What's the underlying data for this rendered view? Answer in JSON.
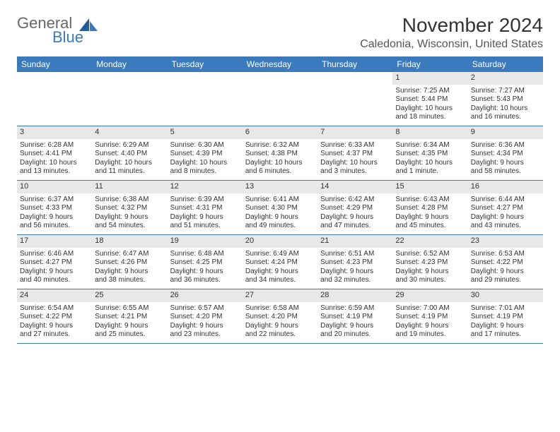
{
  "brand": {
    "part1": "General",
    "part2": "Blue"
  },
  "title": "November 2024",
  "location": "Caledonia, Wisconsin, United States",
  "colors": {
    "header_bg": "#3a7abd",
    "header_text": "#ffffff",
    "daynum_bg": "#e8e8e8",
    "body_text": "#333333",
    "rule": "#3a7abd"
  },
  "weekdays": [
    "Sunday",
    "Monday",
    "Tuesday",
    "Wednesday",
    "Thursday",
    "Friday",
    "Saturday"
  ],
  "weeks": [
    [
      {
        "n": "",
        "empty": true
      },
      {
        "n": "",
        "empty": true
      },
      {
        "n": "",
        "empty": true
      },
      {
        "n": "",
        "empty": true
      },
      {
        "n": "",
        "empty": true
      },
      {
        "n": "1",
        "sunrise": "Sunrise: 7:25 AM",
        "sunset": "Sunset: 5:44 PM",
        "day1": "Daylight: 10 hours",
        "day2": "and 18 minutes."
      },
      {
        "n": "2",
        "sunrise": "Sunrise: 7:27 AM",
        "sunset": "Sunset: 5:43 PM",
        "day1": "Daylight: 10 hours",
        "day2": "and 16 minutes."
      }
    ],
    [
      {
        "n": "3",
        "sunrise": "Sunrise: 6:28 AM",
        "sunset": "Sunset: 4:41 PM",
        "day1": "Daylight: 10 hours",
        "day2": "and 13 minutes."
      },
      {
        "n": "4",
        "sunrise": "Sunrise: 6:29 AM",
        "sunset": "Sunset: 4:40 PM",
        "day1": "Daylight: 10 hours",
        "day2": "and 11 minutes."
      },
      {
        "n": "5",
        "sunrise": "Sunrise: 6:30 AM",
        "sunset": "Sunset: 4:39 PM",
        "day1": "Daylight: 10 hours",
        "day2": "and 8 minutes."
      },
      {
        "n": "6",
        "sunrise": "Sunrise: 6:32 AM",
        "sunset": "Sunset: 4:38 PM",
        "day1": "Daylight: 10 hours",
        "day2": "and 6 minutes."
      },
      {
        "n": "7",
        "sunrise": "Sunrise: 6:33 AM",
        "sunset": "Sunset: 4:37 PM",
        "day1": "Daylight: 10 hours",
        "day2": "and 3 minutes."
      },
      {
        "n": "8",
        "sunrise": "Sunrise: 6:34 AM",
        "sunset": "Sunset: 4:35 PM",
        "day1": "Daylight: 10 hours",
        "day2": "and 1 minute."
      },
      {
        "n": "9",
        "sunrise": "Sunrise: 6:36 AM",
        "sunset": "Sunset: 4:34 PM",
        "day1": "Daylight: 9 hours",
        "day2": "and 58 minutes."
      }
    ],
    [
      {
        "n": "10",
        "sunrise": "Sunrise: 6:37 AM",
        "sunset": "Sunset: 4:33 PM",
        "day1": "Daylight: 9 hours",
        "day2": "and 56 minutes."
      },
      {
        "n": "11",
        "sunrise": "Sunrise: 6:38 AM",
        "sunset": "Sunset: 4:32 PM",
        "day1": "Daylight: 9 hours",
        "day2": "and 54 minutes."
      },
      {
        "n": "12",
        "sunrise": "Sunrise: 6:39 AM",
        "sunset": "Sunset: 4:31 PM",
        "day1": "Daylight: 9 hours",
        "day2": "and 51 minutes."
      },
      {
        "n": "13",
        "sunrise": "Sunrise: 6:41 AM",
        "sunset": "Sunset: 4:30 PM",
        "day1": "Daylight: 9 hours",
        "day2": "and 49 minutes."
      },
      {
        "n": "14",
        "sunrise": "Sunrise: 6:42 AM",
        "sunset": "Sunset: 4:29 PM",
        "day1": "Daylight: 9 hours",
        "day2": "and 47 minutes."
      },
      {
        "n": "15",
        "sunrise": "Sunrise: 6:43 AM",
        "sunset": "Sunset: 4:28 PM",
        "day1": "Daylight: 9 hours",
        "day2": "and 45 minutes."
      },
      {
        "n": "16",
        "sunrise": "Sunrise: 6:44 AM",
        "sunset": "Sunset: 4:27 PM",
        "day1": "Daylight: 9 hours",
        "day2": "and 43 minutes."
      }
    ],
    [
      {
        "n": "17",
        "sunrise": "Sunrise: 6:46 AM",
        "sunset": "Sunset: 4:27 PM",
        "day1": "Daylight: 9 hours",
        "day2": "and 40 minutes."
      },
      {
        "n": "18",
        "sunrise": "Sunrise: 6:47 AM",
        "sunset": "Sunset: 4:26 PM",
        "day1": "Daylight: 9 hours",
        "day2": "and 38 minutes."
      },
      {
        "n": "19",
        "sunrise": "Sunrise: 6:48 AM",
        "sunset": "Sunset: 4:25 PM",
        "day1": "Daylight: 9 hours",
        "day2": "and 36 minutes."
      },
      {
        "n": "20",
        "sunrise": "Sunrise: 6:49 AM",
        "sunset": "Sunset: 4:24 PM",
        "day1": "Daylight: 9 hours",
        "day2": "and 34 minutes."
      },
      {
        "n": "21",
        "sunrise": "Sunrise: 6:51 AM",
        "sunset": "Sunset: 4:23 PM",
        "day1": "Daylight: 9 hours",
        "day2": "and 32 minutes."
      },
      {
        "n": "22",
        "sunrise": "Sunrise: 6:52 AM",
        "sunset": "Sunset: 4:23 PM",
        "day1": "Daylight: 9 hours",
        "day2": "and 30 minutes."
      },
      {
        "n": "23",
        "sunrise": "Sunrise: 6:53 AM",
        "sunset": "Sunset: 4:22 PM",
        "day1": "Daylight: 9 hours",
        "day2": "and 29 minutes."
      }
    ],
    [
      {
        "n": "24",
        "sunrise": "Sunrise: 6:54 AM",
        "sunset": "Sunset: 4:22 PM",
        "day1": "Daylight: 9 hours",
        "day2": "and 27 minutes."
      },
      {
        "n": "25",
        "sunrise": "Sunrise: 6:55 AM",
        "sunset": "Sunset: 4:21 PM",
        "day1": "Daylight: 9 hours",
        "day2": "and 25 minutes."
      },
      {
        "n": "26",
        "sunrise": "Sunrise: 6:57 AM",
        "sunset": "Sunset: 4:20 PM",
        "day1": "Daylight: 9 hours",
        "day2": "and 23 minutes."
      },
      {
        "n": "27",
        "sunrise": "Sunrise: 6:58 AM",
        "sunset": "Sunset: 4:20 PM",
        "day1": "Daylight: 9 hours",
        "day2": "and 22 minutes."
      },
      {
        "n": "28",
        "sunrise": "Sunrise: 6:59 AM",
        "sunset": "Sunset: 4:19 PM",
        "day1": "Daylight: 9 hours",
        "day2": "and 20 minutes."
      },
      {
        "n": "29",
        "sunrise": "Sunrise: 7:00 AM",
        "sunset": "Sunset: 4:19 PM",
        "day1": "Daylight: 9 hours",
        "day2": "and 19 minutes."
      },
      {
        "n": "30",
        "sunrise": "Sunrise: 7:01 AM",
        "sunset": "Sunset: 4:19 PM",
        "day1": "Daylight: 9 hours",
        "day2": "and 17 minutes."
      }
    ]
  ]
}
